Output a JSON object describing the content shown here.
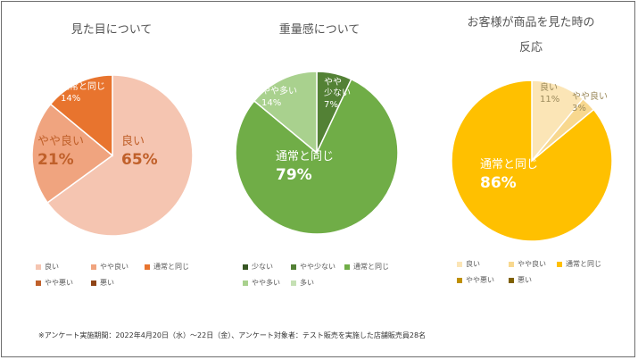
{
  "chart_data": [
    {
      "type": "pie",
      "title": "見た目について",
      "slices": [
        {
          "label": "良い",
          "value": 65,
          "color": "#f5c5b1"
        },
        {
          "label": "やや良い",
          "value": 21,
          "color": "#f0a47f"
        },
        {
          "label": "通常と同じ",
          "value": 14,
          "color": "#e8742e"
        },
        {
          "label": "やや悪い",
          "value": 0,
          "color": "#c0602a"
        },
        {
          "label": "悪い",
          "value": 0,
          "color": "#8f4416"
        }
      ],
      "data_labels": [
        {
          "name": "良い",
          "pct": "65%",
          "color": "#c0602a",
          "big": true
        },
        {
          "name": "やや良い",
          "pct": "21%",
          "color": "#c0602a",
          "big": true
        },
        {
          "name": "通常と同じ",
          "pct": "14%",
          "color": "#ffffff",
          "big": false
        }
      ],
      "legend": [
        "良い",
        "やや良い",
        "通常と同じ",
        "やや悪い",
        "悪い"
      ]
    },
    {
      "type": "pie",
      "title": "重量感について",
      "slices": [
        {
          "label": "少ない",
          "value": 0,
          "color": "#375623"
        },
        {
          "label": "やや少ない",
          "value": 7,
          "color": "#538135"
        },
        {
          "label": "通常と同じ",
          "value": 79,
          "color": "#70ad47"
        },
        {
          "label": "やや多い",
          "value": 14,
          "color": "#a9d18e"
        },
        {
          "label": "多い",
          "value": 0,
          "color": "#c5e0b4"
        }
      ],
      "data_labels": [
        {
          "name": "やや\n少ない",
          "pct": "7%",
          "color": "#ffffff",
          "big": false
        },
        {
          "name": "通常と同じ",
          "pct": "79%",
          "color": "#ffffff",
          "big": true
        },
        {
          "name": "やや多い",
          "pct": "14%",
          "color": "#ffffff",
          "big": false
        }
      ],
      "legend": [
        "少ない",
        "やや少ない",
        "通常と同じ",
        "やや多い",
        "多い"
      ]
    },
    {
      "type": "pie",
      "title": "お客様が商品を見た時の\n反応",
      "slices": [
        {
          "label": "良い",
          "value": 11,
          "color": "#fbe5b6"
        },
        {
          "label": "やや良い",
          "value": 3,
          "color": "#f8d88f"
        },
        {
          "label": "通常と同じ",
          "value": 86,
          "color": "#ffc000"
        },
        {
          "label": "やや悪い",
          "value": 0,
          "color": "#bf9000"
        },
        {
          "label": "悪い",
          "value": 0,
          "color": "#7f6000"
        }
      ],
      "data_labels": [
        {
          "name": "良い",
          "pct": "11%",
          "color": "#9c8a5c",
          "big": false
        },
        {
          "name": "やや良い",
          "pct": "3%",
          "color": "#9c8a5c",
          "big": false
        },
        {
          "name": "通常と同じ",
          "pct": "86%",
          "color": "#ffffff",
          "big": true
        }
      ],
      "legend": [
        "良い",
        "やや良い",
        "通常と同じ",
        "やや悪い",
        "悪い"
      ]
    }
  ],
  "footnote": "※アンケート実施期間：2022年4月20日（水）～22日（金）、アンケート対象者：テスト販売を実施した店舗販売員28名"
}
